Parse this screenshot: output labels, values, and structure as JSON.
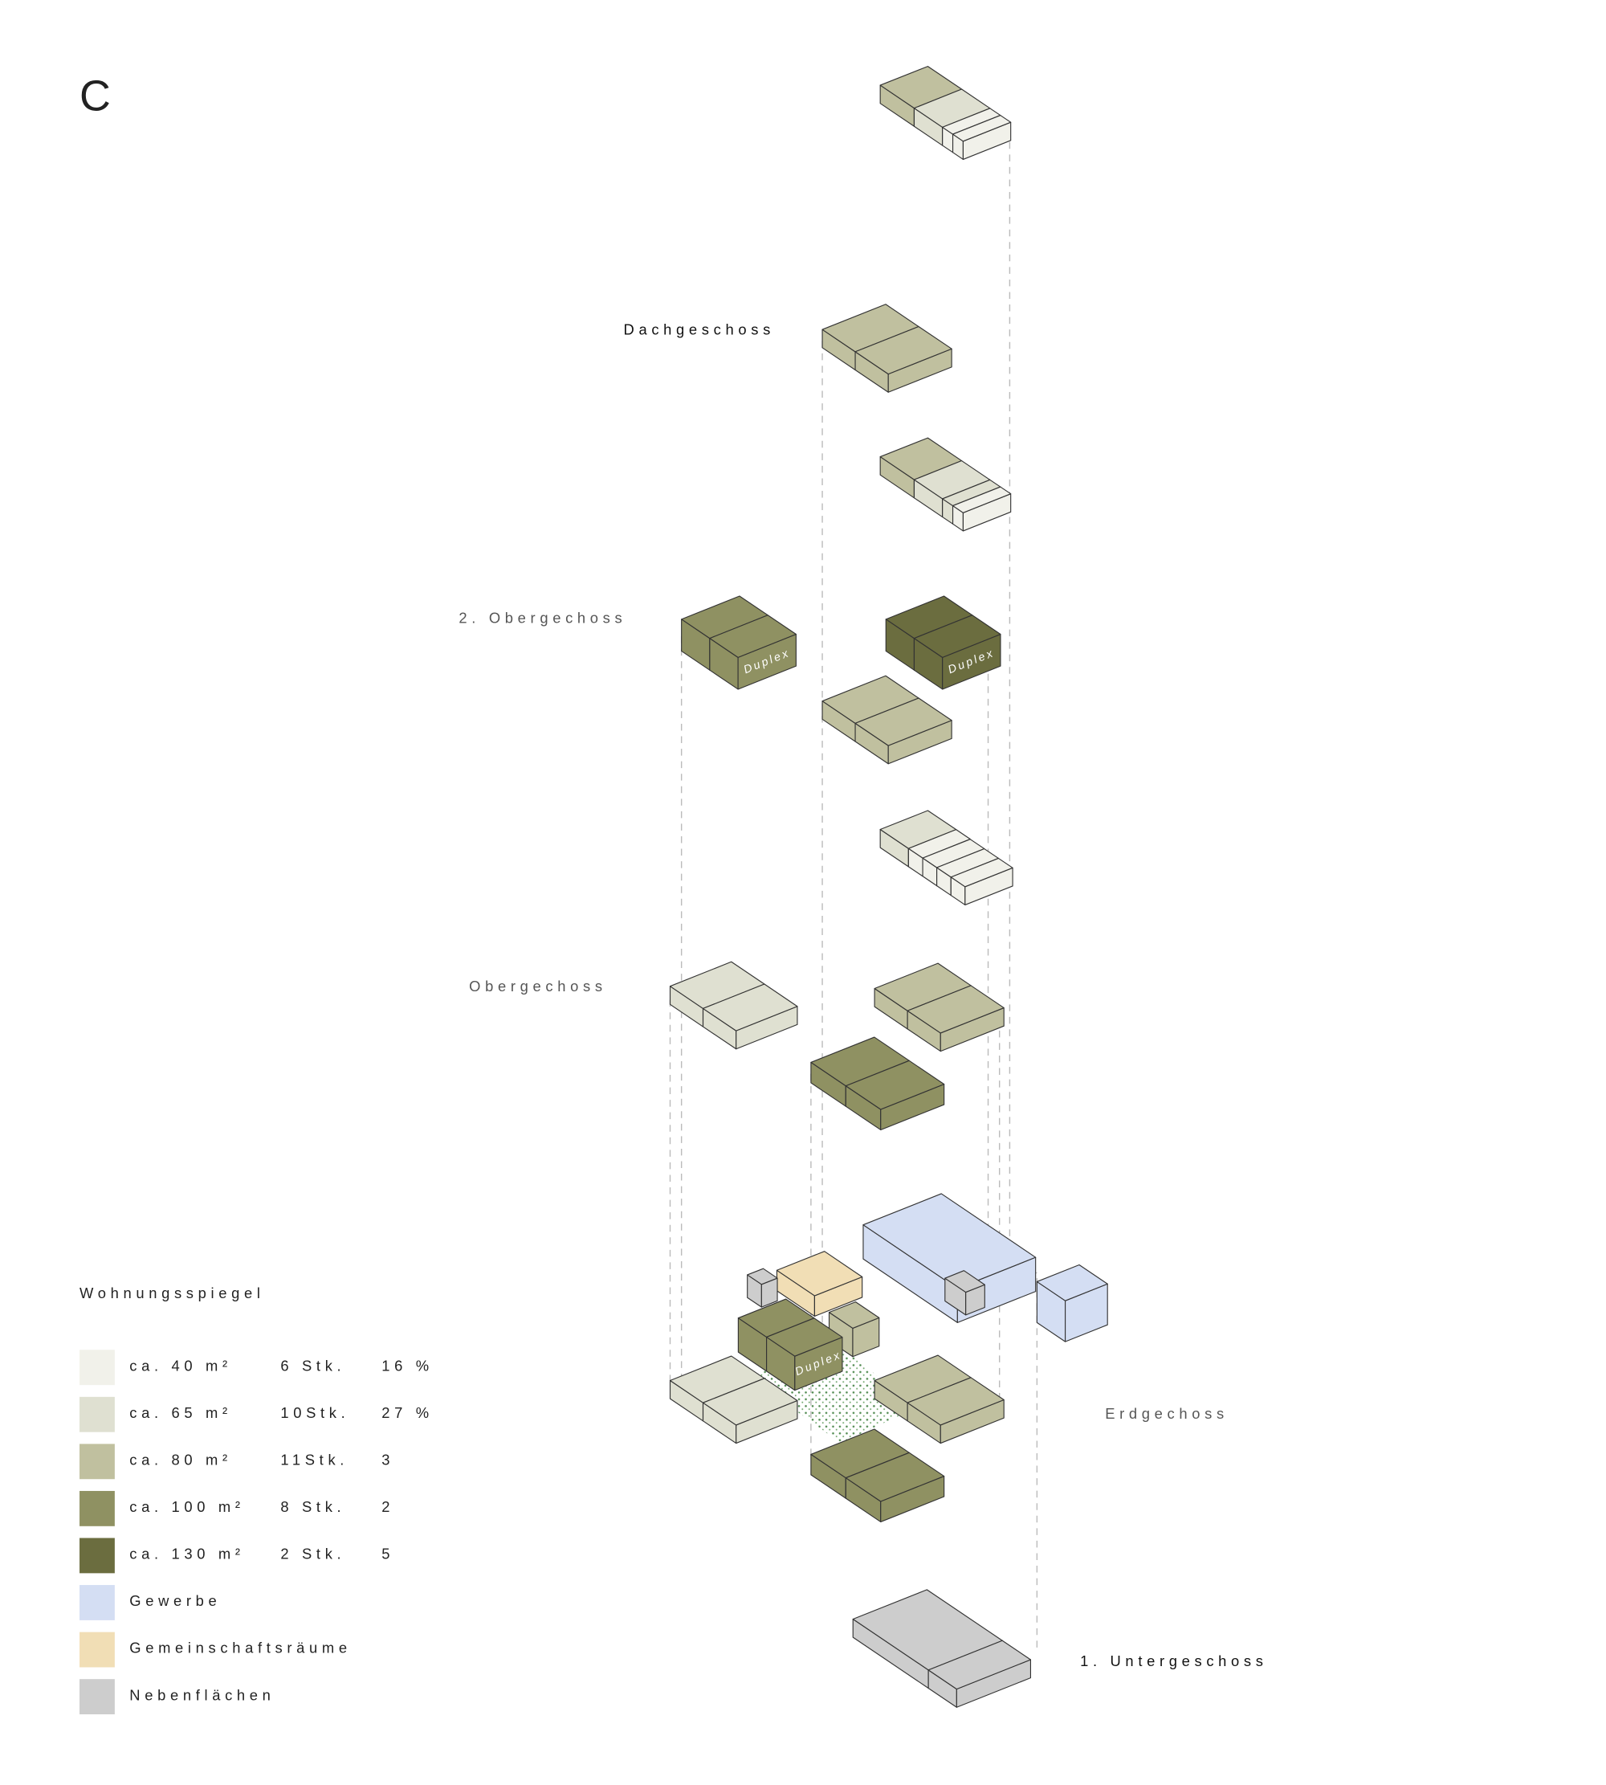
{
  "title": "C",
  "floors": [
    {
      "label": "Dachgeschoss"
    },
    {
      "label": "2. Obergechoss"
    },
    {
      "label": "Obergechoss"
    },
    {
      "label": "Erdgechoss"
    },
    {
      "label": "1. Untergeschoss"
    }
  ],
  "annotations": [
    "Duplex",
    "Duplex",
    "Duplex"
  ],
  "legend": {
    "title": "Wohnungsspiegel",
    "rows": [
      {
        "label": "ca. 40 m²",
        "count": "6 Stk.",
        "share": "16 %",
        "color": "#f1f1ea"
      },
      {
        "label": "ca. 65 m²",
        "count": "10Stk.",
        "share": "27 %",
        "color": "#dfe0d1"
      },
      {
        "label": "ca. 80 m²",
        "count": "11Stk.",
        "share": "3",
        "color": "#c0c09f"
      },
      {
        "label": "ca. 100 m²",
        "count": "8 Stk.",
        "share": "2",
        "color": "#8f9162"
      },
      {
        "label": "ca. 130 m²",
        "count": "2 Stk.",
        "share": "5",
        "color": "#6b6d3f"
      },
      {
        "label": "Gewerbe",
        "color": "#d4def3"
      },
      {
        "label": "Gemeinschaftsräume",
        "color": "#f1deb5"
      },
      {
        "label": "Nebenflächen",
        "color": "#cdcdcd"
      }
    ]
  }
}
